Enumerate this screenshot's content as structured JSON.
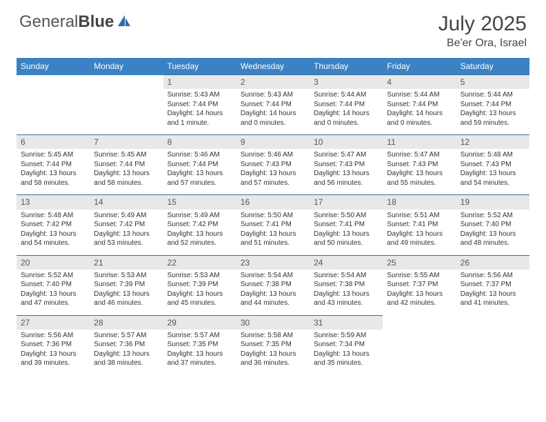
{
  "logo": {
    "text1": "General",
    "text2": "Blue"
  },
  "title": "July 2025",
  "location": "Be'er Ora, Israel",
  "colors": {
    "header_bg": "#3b82c4",
    "header_text": "#ffffff",
    "daynum_bg": "#e8e8e8",
    "border": "#3b6fa0",
    "logo_accent": "#2e6aa8"
  },
  "weekdays": [
    "Sunday",
    "Monday",
    "Tuesday",
    "Wednesday",
    "Thursday",
    "Friday",
    "Saturday"
  ],
  "weeks": [
    [
      {
        "empty": true
      },
      {
        "empty": true
      },
      {
        "n": "1",
        "sr": "5:43 AM",
        "ss": "7:44 PM",
        "dl": "14 hours and 1 minute."
      },
      {
        "n": "2",
        "sr": "5:43 AM",
        "ss": "7:44 PM",
        "dl": "14 hours and 0 minutes."
      },
      {
        "n": "3",
        "sr": "5:44 AM",
        "ss": "7:44 PM",
        "dl": "14 hours and 0 minutes."
      },
      {
        "n": "4",
        "sr": "5:44 AM",
        "ss": "7:44 PM",
        "dl": "14 hours and 0 minutes."
      },
      {
        "n": "5",
        "sr": "5:44 AM",
        "ss": "7:44 PM",
        "dl": "13 hours and 59 minutes."
      }
    ],
    [
      {
        "n": "6",
        "sr": "5:45 AM",
        "ss": "7:44 PM",
        "dl": "13 hours and 58 minutes."
      },
      {
        "n": "7",
        "sr": "5:45 AM",
        "ss": "7:44 PM",
        "dl": "13 hours and 58 minutes."
      },
      {
        "n": "8",
        "sr": "5:46 AM",
        "ss": "7:44 PM",
        "dl": "13 hours and 57 minutes."
      },
      {
        "n": "9",
        "sr": "5:46 AM",
        "ss": "7:43 PM",
        "dl": "13 hours and 57 minutes."
      },
      {
        "n": "10",
        "sr": "5:47 AM",
        "ss": "7:43 PM",
        "dl": "13 hours and 56 minutes."
      },
      {
        "n": "11",
        "sr": "5:47 AM",
        "ss": "7:43 PM",
        "dl": "13 hours and 55 minutes."
      },
      {
        "n": "12",
        "sr": "5:48 AM",
        "ss": "7:43 PM",
        "dl": "13 hours and 54 minutes."
      }
    ],
    [
      {
        "n": "13",
        "sr": "5:48 AM",
        "ss": "7:42 PM",
        "dl": "13 hours and 54 minutes."
      },
      {
        "n": "14",
        "sr": "5:49 AM",
        "ss": "7:42 PM",
        "dl": "13 hours and 53 minutes."
      },
      {
        "n": "15",
        "sr": "5:49 AM",
        "ss": "7:42 PM",
        "dl": "13 hours and 52 minutes."
      },
      {
        "n": "16",
        "sr": "5:50 AM",
        "ss": "7:41 PM",
        "dl": "13 hours and 51 minutes."
      },
      {
        "n": "17",
        "sr": "5:50 AM",
        "ss": "7:41 PM",
        "dl": "13 hours and 50 minutes."
      },
      {
        "n": "18",
        "sr": "5:51 AM",
        "ss": "7:41 PM",
        "dl": "13 hours and 49 minutes."
      },
      {
        "n": "19",
        "sr": "5:52 AM",
        "ss": "7:40 PM",
        "dl": "13 hours and 48 minutes."
      }
    ],
    [
      {
        "n": "20",
        "sr": "5:52 AM",
        "ss": "7:40 PM",
        "dl": "13 hours and 47 minutes."
      },
      {
        "n": "21",
        "sr": "5:53 AM",
        "ss": "7:39 PM",
        "dl": "13 hours and 46 minutes."
      },
      {
        "n": "22",
        "sr": "5:53 AM",
        "ss": "7:39 PM",
        "dl": "13 hours and 45 minutes."
      },
      {
        "n": "23",
        "sr": "5:54 AM",
        "ss": "7:38 PM",
        "dl": "13 hours and 44 minutes."
      },
      {
        "n": "24",
        "sr": "5:54 AM",
        "ss": "7:38 PM",
        "dl": "13 hours and 43 minutes."
      },
      {
        "n": "25",
        "sr": "5:55 AM",
        "ss": "7:37 PM",
        "dl": "13 hours and 42 minutes."
      },
      {
        "n": "26",
        "sr": "5:56 AM",
        "ss": "7:37 PM",
        "dl": "13 hours and 41 minutes."
      }
    ],
    [
      {
        "n": "27",
        "sr": "5:56 AM",
        "ss": "7:36 PM",
        "dl": "13 hours and 39 minutes."
      },
      {
        "n": "28",
        "sr": "5:57 AM",
        "ss": "7:36 PM",
        "dl": "13 hours and 38 minutes."
      },
      {
        "n": "29",
        "sr": "5:57 AM",
        "ss": "7:35 PM",
        "dl": "13 hours and 37 minutes."
      },
      {
        "n": "30",
        "sr": "5:58 AM",
        "ss": "7:35 PM",
        "dl": "13 hours and 36 minutes."
      },
      {
        "n": "31",
        "sr": "5:59 AM",
        "ss": "7:34 PM",
        "dl": "13 hours and 35 minutes."
      },
      {
        "empty": true
      },
      {
        "empty": true
      }
    ]
  ]
}
